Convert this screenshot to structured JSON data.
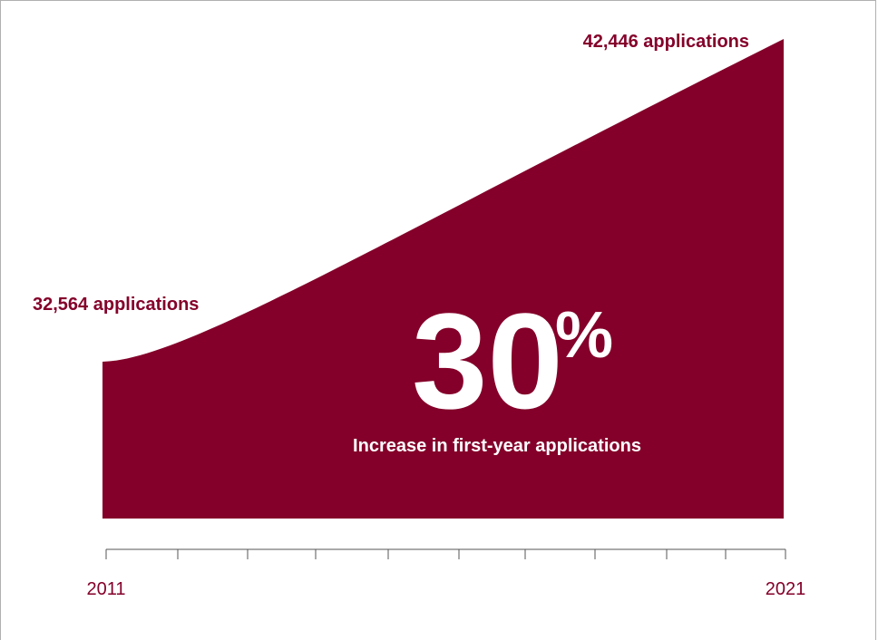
{
  "chart_data": {
    "type": "area",
    "x": [
      2011,
      2021
    ],
    "values": [
      32564,
      42446
    ],
    "series": [
      {
        "values": [
          32564,
          42446
        ]
      }
    ],
    "start_label": "32,564 applications",
    "end_label": "42,446 applications",
    "highlight": {
      "number": "30",
      "unit": "%",
      "caption": "Increase in first-year applications"
    },
    "x_tick_labels": [
      "2011",
      "2021"
    ],
    "x_tick_count": 11,
    "colors": {
      "fill": "#84002a",
      "label": "#84002a",
      "highlight_text": "#ffffff",
      "axis": "#555555"
    }
  }
}
